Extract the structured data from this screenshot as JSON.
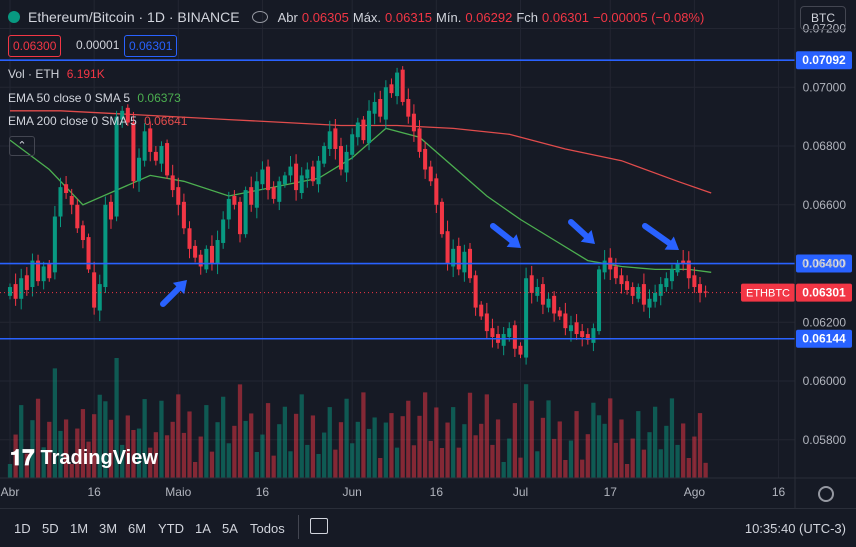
{
  "header": {
    "symbol_title": "Ethereum/Bitcoin · 1D · BINANCE",
    "open_label": "Abr",
    "open_value": "0.06305",
    "high_label": "Máx.",
    "high_value": "0.06315",
    "low_label": "Mín.",
    "low_value": "0.06292",
    "close_label": "Fch",
    "close_value": "0.06301",
    "change_value": "−0.00005 (−0.08%)",
    "bid": "0.06300",
    "spread": "0.00001",
    "ask": "0.06301",
    "currency_button": "BTC"
  },
  "legend": {
    "vol_label": "Vol · ETH",
    "vol_value": "6.191K",
    "ema50_label": "EMA 50 close 0 SMA 5",
    "ema50_value": "0.06373",
    "ema200_label": "EMA 200 close 0 SMA 5",
    "ema200_value": "0.06641"
  },
  "colors": {
    "up": "#089981",
    "down": "#f23645",
    "ema50": "#4caf50",
    "ema200": "#e04c4c",
    "hline": "#2962ff",
    "arrow": "#2962ff",
    "background": "#161a25"
  },
  "chart_data": {
    "type": "candlestick",
    "symbol": "ETHBTC",
    "timeframe": "1D",
    "y_ticks": [
      "0.07200",
      "0.07000",
      "0.06800",
      "0.06600",
      "0.06400",
      "0.06200",
      "0.06000",
      "0.05800"
    ],
    "ylim": [
      0.0567,
      0.0728
    ],
    "x_ticks": [
      {
        "label": "Abr",
        "day": 1
      },
      {
        "label": "16",
        "day": 16
      },
      {
        "label": "Maio",
        "day": 31
      },
      {
        "label": "16",
        "day": 46
      },
      {
        "label": "Jun",
        "day": 62
      },
      {
        "label": "16",
        "day": 77
      },
      {
        "label": "Jul",
        "day": 92
      },
      {
        "label": "17",
        "day": 108
      },
      {
        "label": "Ago",
        "day": 123
      },
      {
        "label": "16",
        "day": 138
      }
    ],
    "horizontal_lines": [
      {
        "label": "0.07092",
        "value": 0.07092
      },
      {
        "label": "0.06400",
        "value": 0.064
      },
      {
        "label": "0.06144",
        "value": 0.06144
      }
    ],
    "last_price": {
      "label": "ETHBTC",
      "value": "0.06301",
      "price": 0.06301
    },
    "candle_closes": [
      0.0632,
      0.0628,
      0.0635,
      0.0631,
      0.0641,
      0.0634,
      0.0639,
      0.0635,
      0.0656,
      0.0666,
      0.0664,
      0.066,
      0.0652,
      0.0648,
      0.0638,
      0.0625,
      0.0633,
      0.066,
      0.0655,
      0.069,
      0.0692,
      0.0688,
      0.0668,
      0.0676,
      0.0685,
      0.0678,
      0.0675,
      0.068,
      0.067,
      0.0665,
      0.066,
      0.0652,
      0.0645,
      0.0642,
      0.0639,
      0.0645,
      0.064,
      0.0648,
      0.0655,
      0.0662,
      0.066,
      0.065,
      0.0665,
      0.066,
      0.0668,
      0.0672,
      0.0665,
      0.0662,
      0.0668,
      0.067,
      0.0673,
      0.0665,
      0.067,
      0.0672,
      0.0668,
      0.0675,
      0.068,
      0.0685,
      0.0679,
      0.0672,
      0.0678,
      0.0684,
      0.0688,
      0.0682,
      0.0692,
      0.0695,
      0.069,
      0.07,
      0.0698,
      0.0705,
      0.0695,
      0.069,
      0.0685,
      0.0678,
      0.0672,
      0.0668,
      0.066,
      0.065,
      0.064,
      0.0645,
      0.0638,
      0.0644,
      0.0635,
      0.0625,
      0.0622,
      0.0617,
      0.0615,
      0.0613,
      0.0616,
      0.0618,
      0.0611,
      0.0609,
      0.0635,
      0.063,
      0.0632,
      0.0626,
      0.0628,
      0.0623,
      0.0622,
      0.0618,
      0.0619,
      0.0616,
      0.0615,
      0.0614,
      0.0618,
      0.0638,
      0.0641,
      0.0638,
      0.0635,
      0.0633,
      0.0631,
      0.0629,
      0.0632,
      0.0626,
      0.0628,
      0.063,
      0.0633,
      0.0635,
      0.0638,
      0.064,
      0.064,
      0.0635,
      0.0632,
      0.063,
      0.06301
    ],
    "candle_opens": [
      0.0629,
      0.0633,
      0.0628,
      0.0636,
      0.0632,
      0.0641,
      0.0634,
      0.064,
      0.0637,
      0.0656,
      0.0667,
      0.0663,
      0.066,
      0.0653,
      0.0649,
      0.0637,
      0.0624,
      0.0632,
      0.0661,
      0.0656,
      0.0689,
      0.0693,
      0.0688,
      0.0668,
      0.0675,
      0.0686,
      0.0678,
      0.0674,
      0.0681,
      0.067,
      0.0666,
      0.0661,
      0.0652,
      0.0646,
      0.0643,
      0.0638,
      0.0646,
      0.064,
      0.0647,
      0.0655,
      0.0663,
      0.0661,
      0.065,
      0.0666,
      0.0659,
      0.0667,
      0.0673,
      0.0666,
      0.0661,
      0.0667,
      0.067,
      0.0674,
      0.0664,
      0.0669,
      0.0673,
      0.0667,
      0.0674,
      0.0679,
      0.0686,
      0.068,
      0.0671,
      0.0677,
      0.0683,
      0.0689,
      0.0681,
      0.0691,
      0.0696,
      0.0689,
      0.0701,
      0.0697,
      0.0706,
      0.0696,
      0.0691,
      0.0686,
      0.0679,
      0.0673,
      0.0669,
      0.0661,
      0.0651,
      0.0639,
      0.0646,
      0.0637,
      0.0645,
      0.0636,
      0.0626,
      0.0623,
      0.0618,
      0.0616,
      0.0612,
      0.0615,
      0.0619,
      0.0612,
      0.0608,
      0.0636,
      0.0629,
      0.0633,
      0.0625,
      0.0629,
      0.0624,
      0.0623,
      0.0617,
      0.062,
      0.0617,
      0.0616,
      0.0613,
      0.0617,
      0.0637,
      0.0642,
      0.0639,
      0.0636,
      0.0634,
      0.0632,
      0.0628,
      0.0633,
      0.0625,
      0.0627,
      0.0629,
      0.0632,
      0.0634,
      0.0637,
      0.0641,
      0.0641,
      0.0636,
      0.0633,
      0.06305
    ],
    "ema50_points": [
      [
        1,
        0.0682
      ],
      [
        8,
        0.0672
      ],
      [
        14,
        0.066
      ],
      [
        20,
        0.0665
      ],
      [
        26,
        0.067
      ],
      [
        32,
        0.0668
      ],
      [
        40,
        0.0663
      ],
      [
        48,
        0.0666
      ],
      [
        56,
        0.0669
      ],
      [
        62,
        0.0676
      ],
      [
        68,
        0.0686
      ],
      [
        74,
        0.0683
      ],
      [
        80,
        0.0673
      ],
      [
        86,
        0.0663
      ],
      [
        92,
        0.0655
      ],
      [
        98,
        0.0648
      ],
      [
        104,
        0.0641
      ],
      [
        110,
        0.0639
      ],
      [
        116,
        0.0638
      ],
      [
        122,
        0.0638
      ],
      [
        126,
        0.0637
      ]
    ],
    "ema200_points": [
      [
        1,
        0.0692
      ],
      [
        10,
        0.0692
      ],
      [
        20,
        0.0691
      ],
      [
        30,
        0.069
      ],
      [
        40,
        0.0689
      ],
      [
        50,
        0.0688
      ],
      [
        60,
        0.0687
      ],
      [
        70,
        0.0687
      ],
      [
        80,
        0.0686
      ],
      [
        90,
        0.0684
      ],
      [
        100,
        0.0679
      ],
      [
        110,
        0.0675
      ],
      [
        120,
        0.0668
      ],
      [
        126,
        0.0664
      ]
    ]
  },
  "timeframes": [
    "1D",
    "5D",
    "1M",
    "3M",
    "6M",
    "YTD",
    "1A",
    "5A",
    "Todos"
  ],
  "clock": "10:35:40 (UTC-3)",
  "brand": "TradingView"
}
